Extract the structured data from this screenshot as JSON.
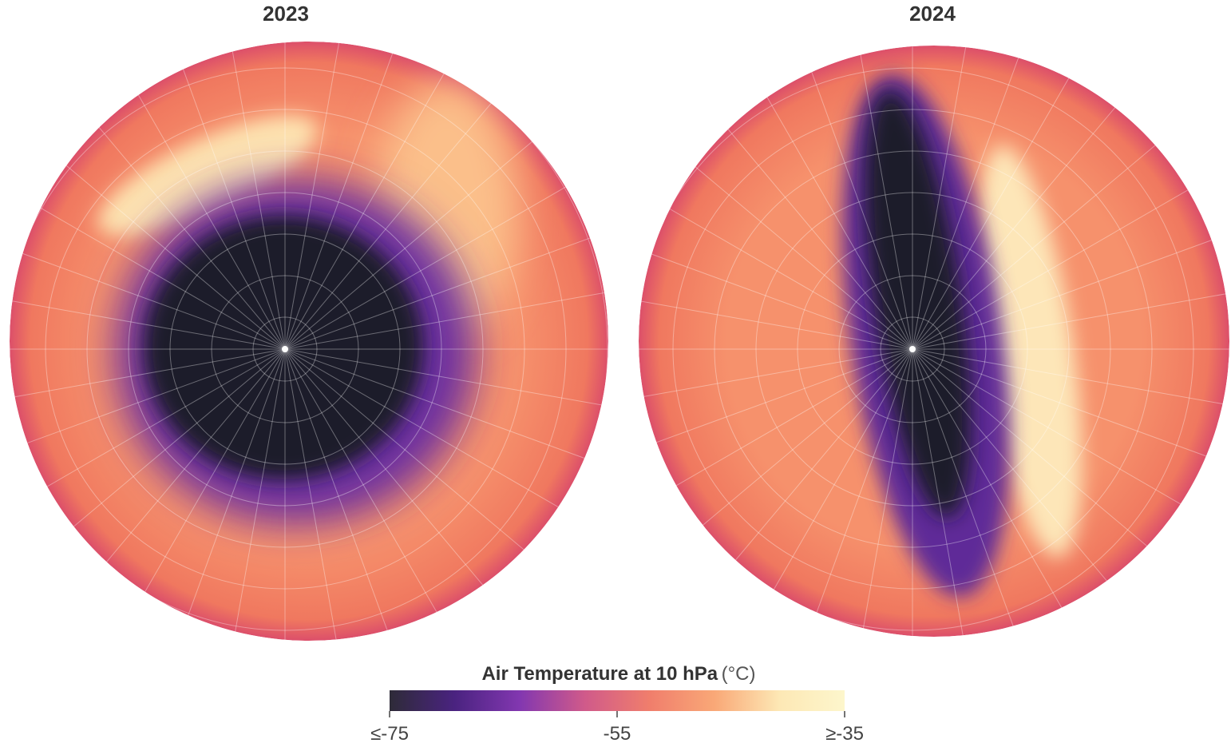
{
  "maps": [
    {
      "title": "2023"
    },
    {
      "title": "2024"
    }
  ],
  "colorbar": {
    "title": "Air Temperature at 10 hPa",
    "unit": "(°C)",
    "range": [
      -75,
      -35
    ],
    "ticks": [
      {
        "value": -75,
        "label": "≤-75"
      },
      {
        "value": -55,
        "label": "-55"
      },
      {
        "value": -35,
        "label": "≥-35"
      }
    ],
    "colors": [
      "#2e2b38",
      "#4a2380",
      "#8237b0",
      "#d05a8a",
      "#f07e6c",
      "#f9a877",
      "#fde8b5",
      "#fdf6cc"
    ]
  }
}
